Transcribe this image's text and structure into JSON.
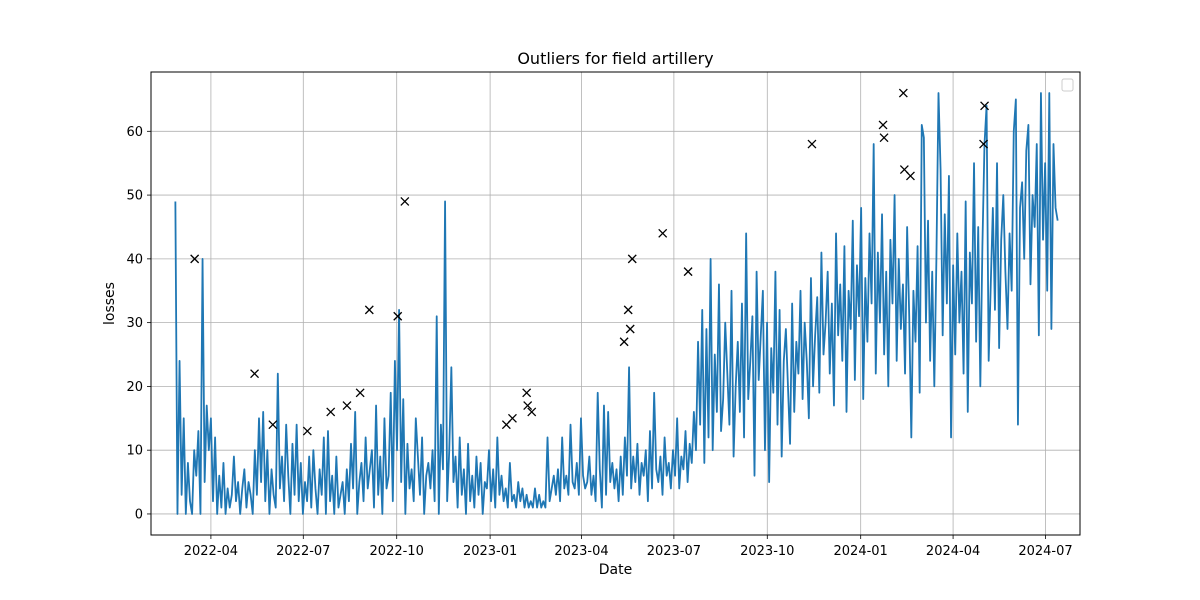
{
  "chart_data": {
    "type": "line",
    "title": "Outliers for field artillery",
    "xlabel": "Date",
    "ylabel": "losses",
    "grid": true,
    "legend": {
      "placement": "top-right",
      "entries": []
    },
    "x_range": [
      "2022-02-01",
      "2024-08-04"
    ],
    "ylim": [
      -3.3,
      69.3
    ],
    "x_ticks": [
      {
        "date": "2022-04-01",
        "label": "2022-04"
      },
      {
        "date": "2022-07-01",
        "label": "2022-07"
      },
      {
        "date": "2022-10-01",
        "label": "2022-10"
      },
      {
        "date": "2023-01-01",
        "label": "2023-01"
      },
      {
        "date": "2023-04-01",
        "label": "2023-04"
      },
      {
        "date": "2023-07-01",
        "label": "2023-07"
      },
      {
        "date": "2023-10-01",
        "label": "2023-10"
      },
      {
        "date": "2024-01-01",
        "label": "2024-01"
      },
      {
        "date": "2024-04-01",
        "label": "2024-04"
      },
      {
        "date": "2024-07-01",
        "label": "2024-07"
      }
    ],
    "y_ticks": [
      0,
      10,
      20,
      30,
      40,
      50,
      60
    ],
    "series": [
      {
        "name": "losses",
        "color": "#1f77b4",
        "start_date": "2022-02-25",
        "end_date": "2024-07-13",
        "values": [
          49,
          0,
          24,
          3,
          15,
          0,
          8,
          2,
          0,
          10,
          6,
          13,
          0,
          40,
          5,
          17,
          10,
          15,
          2,
          12,
          0,
          6,
          1,
          8,
          0,
          4,
          1,
          3,
          9,
          2,
          5,
          0,
          4,
          7,
          1,
          5,
          3,
          0,
          10,
          3,
          15,
          5,
          16,
          2,
          10,
          0,
          7,
          3,
          1,
          22,
          4,
          9,
          2,
          14,
          6,
          0,
          11,
          3,
          14,
          2,
          8,
          0,
          5,
          2,
          9,
          1,
          10,
          4,
          0,
          7,
          3,
          12,
          0,
          13,
          2,
          6,
          0,
          9,
          1,
          3,
          5,
          0,
          7,
          2,
          11,
          4,
          16,
          0,
          5,
          8,
          2,
          12,
          4,
          7,
          10,
          1,
          17,
          3,
          9,
          0,
          15,
          4,
          6,
          19,
          2,
          24,
          10,
          32,
          5,
          18,
          0,
          11,
          4,
          7,
          2,
          15,
          9,
          3,
          12,
          0,
          6,
          8,
          4,
          10,
          2,
          31,
          0,
          14,
          7,
          49,
          2,
          10,
          23,
          5,
          9,
          1,
          12,
          3,
          7,
          0,
          11,
          2,
          6,
          1,
          9,
          3,
          8,
          0,
          5,
          4,
          10,
          2,
          7,
          1,
          12,
          3,
          6,
          2,
          4,
          1,
          8,
          2,
          3,
          1,
          5,
          2,
          4,
          1,
          3,
          1,
          2,
          1,
          4,
          1,
          3,
          1,
          2,
          1,
          12,
          2,
          4,
          6,
          3,
          7,
          2,
          12,
          4,
          6,
          3,
          14,
          5,
          4,
          8,
          3,
          15,
          6,
          4,
          5,
          9,
          3,
          6,
          2,
          19,
          7,
          1,
          17,
          3,
          16,
          5,
          8,
          4,
          7,
          2,
          9,
          3,
          12,
          6,
          23,
          4,
          9,
          5,
          11,
          3,
          8,
          6,
          10,
          2,
          13,
          4,
          19,
          7,
          5,
          9,
          3,
          12,
          6,
          8,
          4,
          10,
          6,
          15,
          4,
          9,
          7,
          13,
          5,
          11,
          8,
          16,
          10,
          27,
          14,
          32,
          8,
          29,
          12,
          40,
          10,
          25,
          16,
          36,
          13,
          18,
          30,
          22,
          14,
          35,
          9,
          20,
          27,
          16,
          33,
          12,
          44,
          18,
          24,
          31,
          6,
          38,
          21,
          28,
          35,
          10,
          30,
          5,
          26,
          19,
          38,
          14,
          32,
          9,
          24,
          29,
          20,
          11,
          33,
          16,
          27,
          22,
          35,
          18,
          30,
          24,
          15,
          37,
          20,
          28,
          34,
          19,
          41,
          25,
          30,
          38,
          22,
          33,
          17,
          44,
          28,
          36,
          24,
          42,
          16,
          35,
          29,
          46,
          21,
          39,
          31,
          48,
          18,
          37,
          27,
          44,
          33,
          58,
          22,
          41,
          30,
          47,
          25,
          38,
          20,
          43,
          33,
          50,
          24,
          40,
          29,
          36,
          22,
          45,
          31,
          12,
          35,
          27,
          42,
          19,
          61,
          59,
          30,
          46,
          24,
          38,
          20,
          40,
          66,
          54,
          28,
          47,
          33,
          53,
          12,
          39,
          25,
          44,
          30,
          38,
          22,
          49,
          16,
          41,
          33,
          55,
          27,
          45,
          20,
          42,
          58,
          64,
          24,
          36,
          48,
          32,
          55,
          26,
          43,
          50,
          38,
          29,
          44,
          35,
          60,
          65,
          14,
          48,
          52,
          40,
          57,
          61,
          36,
          50,
          45,
          58,
          28,
          66,
          43,
          55,
          35,
          66,
          29,
          58,
          48,
          46
        ]
      }
    ],
    "outliers": {
      "marker": "x",
      "color": "#000000",
      "points": [
        {
          "date": "2022-03-16",
          "value": 40
        },
        {
          "date": "2022-05-14",
          "value": 22
        },
        {
          "date": "2022-06-01",
          "value": 14
        },
        {
          "date": "2022-07-05",
          "value": 13
        },
        {
          "date": "2022-07-28",
          "value": 16
        },
        {
          "date": "2022-08-13",
          "value": 17
        },
        {
          "date": "2022-08-26",
          "value": 19
        },
        {
          "date": "2022-09-04",
          "value": 32
        },
        {
          "date": "2022-10-02",
          "value": 31
        },
        {
          "date": "2022-10-09",
          "value": 49
        },
        {
          "date": "2023-01-17",
          "value": 14
        },
        {
          "date": "2023-01-23",
          "value": 15
        },
        {
          "date": "2023-02-06",
          "value": 19
        },
        {
          "date": "2023-02-07",
          "value": 17
        },
        {
          "date": "2023-02-11",
          "value": 16
        },
        {
          "date": "2023-05-13",
          "value": 27
        },
        {
          "date": "2023-05-17",
          "value": 32
        },
        {
          "date": "2023-05-19",
          "value": 29
        },
        {
          "date": "2023-05-21",
          "value": 40
        },
        {
          "date": "2023-06-20",
          "value": 44
        },
        {
          "date": "2023-07-15",
          "value": 38
        },
        {
          "date": "2023-11-14",
          "value": 58
        },
        {
          "date": "2024-01-23",
          "value": 61
        },
        {
          "date": "2024-01-24",
          "value": 59
        },
        {
          "date": "2024-02-12",
          "value": 66
        },
        {
          "date": "2024-02-13",
          "value": 54
        },
        {
          "date": "2024-02-19",
          "value": 53
        },
        {
          "date": "2024-05-01",
          "value": 58
        },
        {
          "date": "2024-05-02",
          "value": 64
        }
      ]
    }
  }
}
